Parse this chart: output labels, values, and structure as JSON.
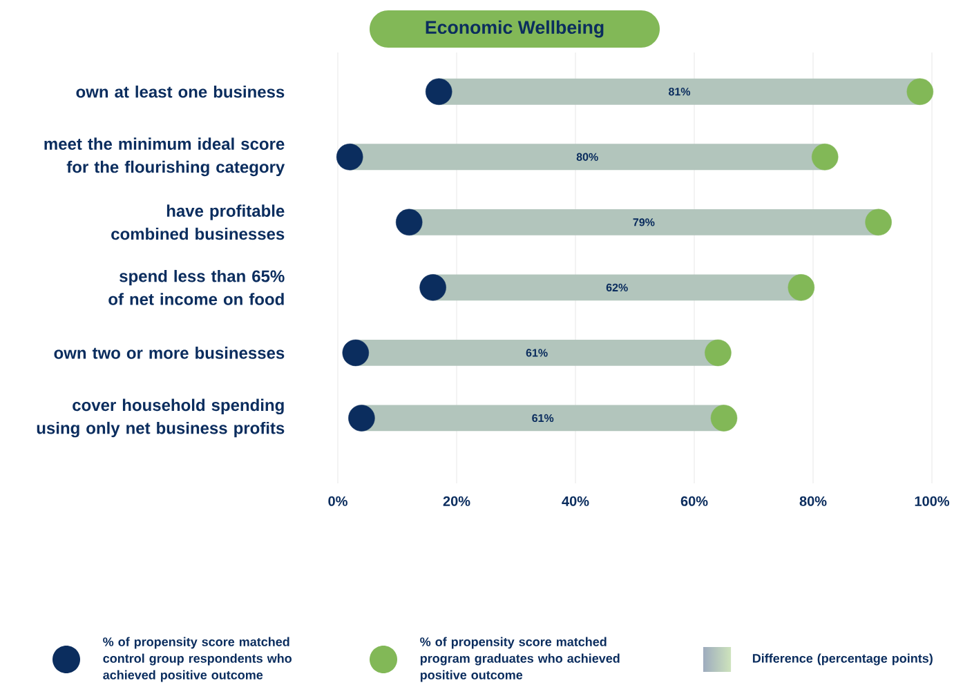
{
  "chart_data": {
    "type": "bar",
    "orientation": "horizontal",
    "title": "Economic Wellbeing",
    "categories": [
      "own at least one business",
      "meet the minimum ideal score for the flourishing category",
      "have profitable combined businesses",
      "spend less than 65% of net income on food",
      "own two or more businesses",
      "cover household spending using only net business profits"
    ],
    "series": [
      {
        "name": "% of propensity score matched control group respondents who achieved positive outcome",
        "type": "scatter",
        "color": "#0b2d5e",
        "values": [
          17,
          2,
          12,
          16,
          3,
          4
        ]
      },
      {
        "name": "% of propensity score matched program graduates who achieved positive outcome",
        "type": "scatter",
        "color": "#82b857",
        "values": [
          98,
          82,
          91,
          78,
          64,
          65
        ]
      },
      {
        "name": "Difference (percentage points)",
        "color": "#b2c5bc",
        "base": [
          17,
          2,
          12,
          16,
          3,
          4
        ],
        "values": [
          81,
          80,
          79,
          62,
          61,
          61
        ],
        "value_labels": [
          "81%",
          "80%",
          "79%",
          "62%",
          "61%",
          "61%"
        ]
      }
    ],
    "xlim": [
      0,
      100
    ],
    "xticks": [
      {
        "value": 0,
        "label": "0%"
      },
      {
        "value": 20,
        "label": "20%"
      },
      {
        "value": 40,
        "label": "40%"
      },
      {
        "value": 60,
        "label": "60%"
      },
      {
        "value": 80,
        "label": "80%"
      },
      {
        "value": 100,
        "label": "100%"
      }
    ],
    "grid": "x",
    "legend": "bottom",
    "marker": "circle"
  }
}
